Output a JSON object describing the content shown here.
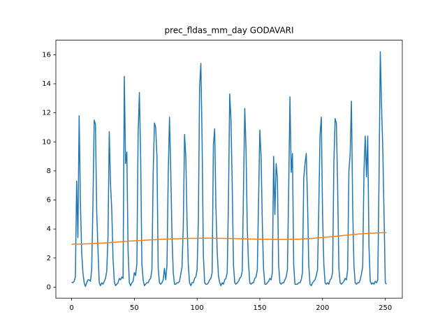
{
  "chart_data": {
    "type": "line",
    "title": "prec_fldas_mm_day GODAVARI",
    "xlim": [
      -12.55,
      263.55
    ],
    "xticks": [
      0,
      50,
      100,
      150,
      200,
      250
    ],
    "ylim": [
      -0.76,
      17.0
    ],
    "yticks": [
      0,
      2,
      4,
      6,
      8,
      10,
      12,
      14,
      16
    ],
    "grid": false,
    "series": [
      {
        "color": "#1f77b4",
        "values": [
          0.35,
          0.3,
          0.4,
          0.7,
          7.3,
          3.4,
          11.8,
          5.9,
          2.4,
          1.0,
          0.3,
          0.05,
          0.3,
          0.5,
          0.5,
          0.4,
          1.2,
          5.8,
          11.5,
          11.2,
          5.2,
          2.6,
          0.3,
          0.1,
          0.3,
          0.2,
          0.4,
          0.6,
          1.1,
          3.5,
          10.7,
          7.1,
          5.3,
          2.0,
          0.4,
          0.1,
          0.2,
          0.3,
          0.6,
          0.5,
          0.7,
          0.6,
          14.5,
          8.5,
          9.3,
          2.5,
          0.3,
          0.1,
          0.3,
          0.4,
          1.0,
          0.8,
          1.6,
          10.5,
          13.4,
          9.1,
          1.6,
          0.5,
          0.1,
          0.2,
          0.3,
          0.3,
          0.5,
          0.6,
          1.2,
          7.8,
          11.3,
          11.0,
          9.0,
          1.3,
          0.3,
          0.2,
          0.3,
          0.5,
          1.3,
          0.5,
          1.5,
          7.8,
          11.7,
          8.0,
          3.5,
          1.0,
          0.2,
          0.2,
          0.3,
          0.3,
          0.4,
          0.9,
          1.4,
          4.2,
          10.5,
          9.0,
          4.5,
          1.5,
          0.3,
          0.1,
          0.3,
          0.3,
          0.6,
          0.7,
          1.2,
          4.5,
          13.8,
          15.4,
          10.0,
          2.2,
          0.3,
          0.2,
          0.2,
          0.3,
          0.5,
          0.6,
          1.0,
          9.8,
          10.9,
          5.5,
          2.5,
          0.8,
          0.3,
          0.1,
          0.3,
          0.2,
          0.5,
          0.6,
          1.0,
          6.0,
          13.3,
          11.5,
          7.0,
          1.5,
          0.3,
          0.2,
          0.3,
          0.4,
          0.6,
          0.7,
          1.1,
          6.8,
          12.3,
          9.5,
          4.0,
          1.6,
          0.3,
          0.2,
          0.3,
          0.3,
          0.6,
          0.7,
          1.2,
          6.0,
          10.8,
          9.0,
          4.3,
          1.2,
          0.2,
          0.2,
          0.3,
          0.4,
          0.6,
          0.5,
          1.0,
          9.0,
          5.0,
          8.5,
          7.5,
          1.5,
          0.3,
          0.2,
          0.3,
          0.3,
          0.5,
          0.7,
          1.2,
          6.8,
          13.1,
          7.9,
          9.2,
          1.5,
          0.2,
          0.2,
          0.2,
          0.3,
          0.3,
          0.5,
          1.0,
          7.5,
          8.5,
          9.2,
          6.0,
          1.5,
          0.2,
          0.1,
          0.3,
          0.4,
          0.5,
          0.8,
          1.2,
          5.5,
          10.5,
          11.7,
          5.0,
          1.6,
          0.3,
          0.2,
          0.3,
          0.2,
          0.5,
          0.6,
          1.0,
          8.5,
          11.6,
          11.3,
          7.0,
          1.3,
          0.3,
          0.2,
          0.3,
          0.4,
          0.6,
          0.5,
          1.2,
          8.0,
          9.2,
          12.8,
          5.5,
          1.5,
          0.3,
          0.2,
          0.3,
          0.3,
          0.5,
          0.9,
          1.4,
          8.0,
          10.4,
          7.6,
          10.4,
          2.8,
          0.4,
          0.2,
          0.3,
          0.2,
          0.4,
          0.3,
          0.5,
          7.5,
          16.2,
          12.5,
          9.5,
          5.0,
          0.3,
          0.2
        ]
      },
      {
        "color": "#ff7f0e",
        "values": [
          2.95,
          2.95,
          2.96,
          2.96,
          2.96,
          2.96,
          2.97,
          2.97,
          2.97,
          2.97,
          2.98,
          2.98,
          2.98,
          2.98,
          2.99,
          2.99,
          3.0,
          3.0,
          3.01,
          3.01,
          3.01,
          3.02,
          3.02,
          3.03,
          3.03,
          3.04,
          3.04,
          3.05,
          3.05,
          3.06,
          3.06,
          3.07,
          3.08,
          3.08,
          3.09,
          3.09,
          3.1,
          3.11,
          3.11,
          3.12,
          3.13,
          3.13,
          3.14,
          3.15,
          3.15,
          3.16,
          3.17,
          3.17,
          3.18,
          3.18,
          3.19,
          3.19,
          3.2,
          3.2,
          3.21,
          3.21,
          3.22,
          3.22,
          3.23,
          3.23,
          3.24,
          3.24,
          3.25,
          3.25,
          3.26,
          3.26,
          3.26,
          3.27,
          3.27,
          3.28,
          3.28,
          3.29,
          3.29,
          3.29,
          3.3,
          3.3,
          3.3,
          3.31,
          3.31,
          3.31,
          3.32,
          3.32,
          3.32,
          3.33,
          3.33,
          3.33,
          3.33,
          3.34,
          3.34,
          3.34,
          3.35,
          3.35,
          3.35,
          3.35,
          3.36,
          3.36,
          3.36,
          3.36,
          3.36,
          3.36,
          3.36,
          3.37,
          3.37,
          3.37,
          3.37,
          3.37,
          3.37,
          3.37,
          3.37,
          3.37,
          3.37,
          3.37,
          3.37,
          3.37,
          3.36,
          3.36,
          3.36,
          3.36,
          3.36,
          3.36,
          3.36,
          3.36,
          3.36,
          3.35,
          3.35,
          3.35,
          3.35,
          3.35,
          3.34,
          3.34,
          3.34,
          3.34,
          3.34,
          3.34,
          3.33,
          3.33,
          3.33,
          3.33,
          3.32,
          3.32,
          3.32,
          3.32,
          3.31,
          3.31,
          3.31,
          3.31,
          3.31,
          3.3,
          3.3,
          3.3,
          3.3,
          3.3,
          3.29,
          3.29,
          3.29,
          3.29,
          3.29,
          3.29,
          3.29,
          3.29,
          3.29,
          3.28,
          3.28,
          3.28,
          3.28,
          3.28,
          3.28,
          3.28,
          3.28,
          3.28,
          3.28,
          3.28,
          3.29,
          3.29,
          3.29,
          3.29,
          3.29,
          3.29,
          3.3,
          3.3,
          3.3,
          3.3,
          3.31,
          3.31,
          3.32,
          3.32,
          3.33,
          3.33,
          3.34,
          3.34,
          3.35,
          3.35,
          3.36,
          3.37,
          3.37,
          3.38,
          3.39,
          3.4,
          3.4,
          3.41,
          3.42,
          3.43,
          3.43,
          3.44,
          3.45,
          3.46,
          3.47,
          3.47,
          3.48,
          3.49,
          3.5,
          3.51,
          3.52,
          3.52,
          3.53,
          3.54,
          3.55,
          3.56,
          3.57,
          3.57,
          3.58,
          3.59,
          3.6,
          3.61,
          3.62,
          3.62,
          3.63,
          3.64,
          3.65,
          3.66,
          3.66,
          3.67,
          3.67,
          3.68,
          3.69,
          3.69,
          3.7,
          3.7,
          3.71,
          3.71,
          3.72,
          3.72,
          3.72,
          3.73,
          3.73,
          3.73,
          3.74,
          3.74,
          3.74,
          3.74,
          3.75,
          3.75
        ]
      }
    ]
  }
}
